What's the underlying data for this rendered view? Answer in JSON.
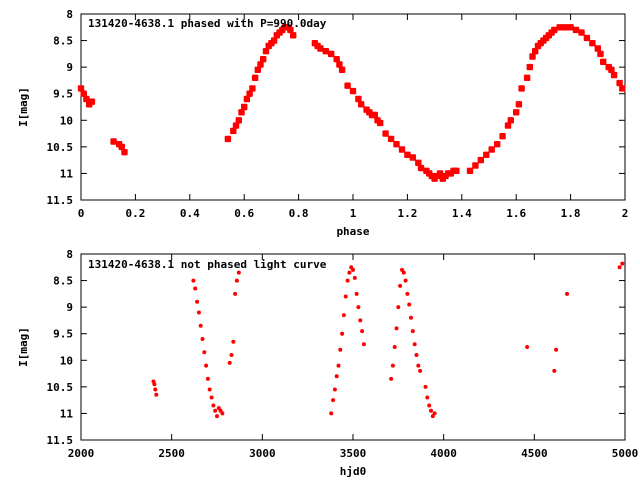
{
  "colors": {
    "points": "#ff0000",
    "axes": "#000000",
    "background": "#ffffff"
  },
  "chart_data": [
    {
      "type": "scatter",
      "title": "131420-4638.1 phased with P=990.0day",
      "xlabel": "phase",
      "ylabel": "I[mag]",
      "xlim": [
        0,
        2
      ],
      "ylim": [
        8,
        11.5
      ],
      "y_inverted": true,
      "grid": false,
      "x_ticks": [
        "0",
        "0.2",
        "0.4",
        "0.6",
        "0.8",
        "1",
        "1.2",
        "1.4",
        "1.6",
        "1.8",
        "2"
      ],
      "y_ticks": [
        "8",
        "8.5",
        "9",
        "9.5",
        "10",
        "10.5",
        "11",
        "11.5"
      ],
      "x_tick_values": [
        0,
        0.2,
        0.4,
        0.6,
        0.8,
        1.0,
        1.2,
        1.4,
        1.6,
        1.8,
        2.0
      ],
      "y_tick_values": [
        8,
        8.5,
        9,
        9.5,
        10,
        10.5,
        11,
        11.5
      ],
      "series": [
        {
          "x": [
            0.0,
            0.01,
            0.02,
            0.03,
            0.04,
            0.12,
            0.14,
            0.15,
            0.16,
            0.54,
            0.56,
            0.57,
            0.58,
            0.59,
            0.6,
            0.61,
            0.62,
            0.63,
            0.64,
            0.65,
            0.66,
            0.67,
            0.68,
            0.69,
            0.7,
            0.71,
            0.72,
            0.73,
            0.74,
            0.75,
            0.76,
            0.77,
            0.78,
            0.86,
            0.87,
            0.88,
            0.9,
            0.92,
            0.94,
            0.95,
            0.96,
            0.98,
            1.0,
            1.02,
            1.03,
            1.05,
            1.06,
            1.07,
            1.08,
            1.09,
            1.1,
            1.12,
            1.14,
            1.16,
            1.18,
            1.2,
            1.22,
            1.24,
            1.25,
            1.27,
            1.28,
            1.29,
            1.3,
            1.31,
            1.32,
            1.33,
            1.34,
            1.35,
            1.36,
            1.37,
            1.38,
            1.43,
            1.45,
            1.47,
            1.49,
            1.51,
            1.53,
            1.55,
            1.57,
            1.58,
            1.6,
            1.61,
            1.62,
            1.64,
            1.65,
            1.66,
            1.67,
            1.68,
            1.69,
            1.7,
            1.71,
            1.72,
            1.73,
            1.74,
            1.76,
            1.78,
            1.8,
            1.82,
            1.84,
            1.86,
            1.88,
            1.9,
            1.91,
            1.92,
            1.94,
            1.95,
            1.96,
            1.98,
            1.99
          ],
          "y": [
            9.4,
            9.5,
            9.6,
            9.7,
            9.65,
            10.4,
            10.45,
            10.5,
            10.6,
            10.35,
            10.2,
            10.1,
            10.0,
            9.85,
            9.75,
            9.6,
            9.5,
            9.4,
            9.2,
            9.05,
            8.95,
            8.85,
            8.7,
            8.6,
            8.55,
            8.5,
            8.4,
            8.35,
            8.3,
            8.25,
            8.25,
            8.3,
            8.4,
            8.55,
            8.6,
            8.65,
            8.7,
            8.75,
            8.85,
            8.95,
            9.05,
            9.35,
            9.45,
            9.6,
            9.7,
            9.8,
            9.85,
            9.9,
            9.9,
            10.0,
            10.05,
            10.25,
            10.35,
            10.45,
            10.55,
            10.65,
            10.7,
            10.8,
            10.9,
            10.95,
            11.0,
            11.05,
            11.1,
            11.05,
            11.0,
            11.1,
            11.05,
            11.0,
            11.0,
            10.95,
            10.95,
            10.95,
            10.85,
            10.75,
            10.65,
            10.55,
            10.45,
            10.3,
            10.1,
            10.0,
            9.85,
            9.7,
            9.4,
            9.2,
            9.0,
            8.8,
            8.7,
            8.6,
            8.55,
            8.5,
            8.45,
            8.4,
            8.35,
            8.3,
            8.25,
            8.25,
            8.25,
            8.3,
            8.35,
            8.45,
            8.55,
            8.65,
            8.75,
            8.9,
            9.0,
            9.05,
            9.15,
            9.3,
            9.4
          ]
        }
      ]
    },
    {
      "type": "scatter",
      "title": "131420-4638.1 not phased light curve",
      "xlabel": "hjd0",
      "ylabel": "I[mag]",
      "xlim": [
        2000,
        5000
      ],
      "ylim": [
        8,
        11.5
      ],
      "y_inverted": true,
      "grid": false,
      "x_ticks": [
        "2000",
        "2500",
        "3000",
        "3500",
        "4000",
        "4500",
        "5000"
      ],
      "y_ticks": [
        "8",
        "8.5",
        "9",
        "9.5",
        "10",
        "10.5",
        "11",
        "11.5"
      ],
      "x_tick_values": [
        2000,
        2500,
        3000,
        3500,
        4000,
        4500,
        5000
      ],
      "y_tick_values": [
        8,
        8.5,
        9,
        9.5,
        10,
        10.5,
        11,
        11.5
      ],
      "series": [
        {
          "x": [
            2400,
            2405,
            2410,
            2415,
            2620,
            2630,
            2640,
            2650,
            2660,
            2670,
            2680,
            2690,
            2700,
            2710,
            2720,
            2730,
            2740,
            2750,
            2760,
            2770,
            2780,
            2820,
            2830,
            2840,
            2850,
            2860,
            2870,
            3380,
            3390,
            3400,
            3410,
            3420,
            3430,
            3440,
            3450,
            3460,
            3470,
            3480,
            3490,
            3500,
            3510,
            3520,
            3530,
            3540,
            3550,
            3560,
            3710,
            3720,
            3730,
            3740,
            3750,
            3760,
            3770,
            3780,
            3790,
            3800,
            3810,
            3820,
            3830,
            3840,
            3850,
            3860,
            3870,
            3900,
            3910,
            3920,
            3930,
            3940,
            3950,
            4460,
            4610,
            4620,
            4680,
            4970,
            4985
          ],
          "y": [
            10.4,
            10.45,
            10.55,
            10.65,
            8.5,
            8.65,
            8.9,
            9.1,
            9.35,
            9.6,
            9.85,
            10.1,
            10.35,
            10.55,
            10.7,
            10.85,
            10.95,
            11.05,
            10.9,
            10.95,
            11.0,
            10.05,
            9.9,
            9.65,
            8.75,
            8.5,
            8.35,
            11.0,
            10.75,
            10.55,
            10.3,
            10.1,
            9.8,
            9.5,
            9.15,
            8.8,
            8.5,
            8.35,
            8.25,
            8.3,
            8.45,
            8.75,
            9.0,
            9.25,
            9.45,
            9.7,
            10.35,
            10.1,
            9.75,
            9.4,
            9.0,
            8.6,
            8.3,
            8.35,
            8.5,
            8.75,
            8.95,
            9.2,
            9.45,
            9.7,
            9.9,
            10.1,
            10.2,
            10.5,
            10.7,
            10.85,
            10.95,
            11.05,
            11.0,
            9.75,
            10.2,
            9.8,
            8.75,
            8.25,
            8.18
          ]
        }
      ]
    }
  ]
}
